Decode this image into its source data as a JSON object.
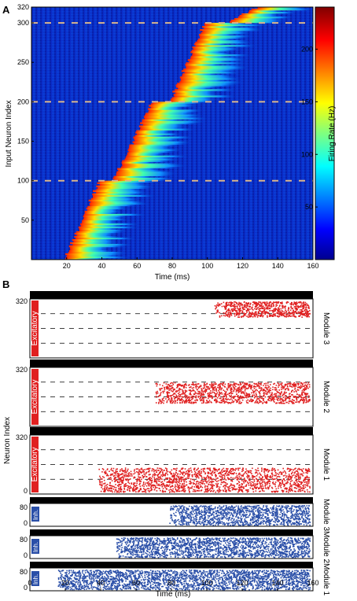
{
  "panel_a": {
    "letter": "A",
    "ylabel": "Input Neuron Index",
    "xlabel": "Time (ms)",
    "colorbar_label": "Firing Rate (Hz)",
    "yticks": [
      "50",
      "100",
      "150",
      "200",
      "250",
      "300",
      "320"
    ],
    "xticks": [
      "20",
      "40",
      "60",
      "80",
      "100",
      "120",
      "140",
      "160"
    ],
    "cbticks": [
      "50",
      "100",
      "150",
      "200"
    ]
  },
  "panel_b": {
    "letter": "B",
    "ylabel": "Neuron Index",
    "xlabel": "Time (ms)",
    "xticks": [
      "0",
      "20",
      "40",
      "60",
      "80",
      "100",
      "120",
      "140",
      "160"
    ],
    "excitatory_label": "Excitatory",
    "inh_label": "Inh.",
    "exc_modules": [
      {
        "label": "Module 3",
        "y_top": "320",
        "y_bottom": ""
      },
      {
        "label": "Module 2",
        "y_top": "320",
        "y_bottom": ""
      },
      {
        "label": "Module 1",
        "y_top": "320",
        "y_bottom": "0"
      }
    ],
    "inh_modules": [
      {
        "label": "Module 3",
        "y_top": "80",
        "y_bottom": "0"
      },
      {
        "label": "Module 2",
        "y_top": "80",
        "y_bottom": "0"
      },
      {
        "label": "Module 1",
        "y_top": "80",
        "y_bottom": "0"
      }
    ]
  },
  "chart_data": [
    {
      "type": "heatmap",
      "title": "",
      "xlabel": "Time (ms)",
      "ylabel": "Input Neuron Index",
      "xlim": [
        0,
        160
      ],
      "ylim": [
        0,
        320
      ],
      "colorbar": {
        "label": "Firing Rate (Hz)",
        "range": [
          0,
          240
        ],
        "ticks": [
          50,
          100,
          150,
          200
        ]
      },
      "dashed_lines_y": [
        100,
        200,
        300
      ],
      "activation_front": {
        "neuron_index": [
          0,
          100,
          100,
          200,
          200,
          300,
          300,
          320
        ],
        "time_ms": [
          20,
          40,
          48,
          70,
          80,
          100,
          112,
          130
        ]
      }
    },
    {
      "type": "scatter",
      "title": "",
      "xlabel": "Time (ms)",
      "ylabel": "Neuron Index",
      "xlim": [
        0,
        160
      ],
      "series": [
        {
          "name": "Module 3",
          "start_ms": 110,
          "end_ms": 158
        },
        {
          "name": "Module 2",
          "start_ms": 77,
          "end_ms": 158
        },
        {
          "name": "Module 1",
          "start_ms": 45,
          "end_ms": 158
        },
        {
          "name": "Module 3",
          "start_ms": 85,
          "end_ms": 158
        },
        {
          "name": "Module 2",
          "start_ms": 55,
          "end_ms": 158
        },
        {
          "name": "Module 1",
          "start_ms": 22,
          "end_ms": 158
        }
      ],
      "colors": {
        "excitatory": "#e02020",
        "inhibitory": "#2a4fa8"
      }
    }
  ]
}
